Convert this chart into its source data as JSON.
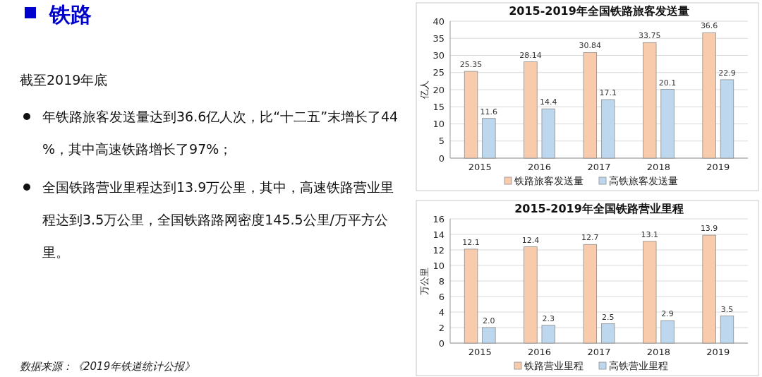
{
  "chart_data": [
    {
      "type": "other",
      "title": "铁路",
      "annotations": [
        "截至2019年底",
        "年铁路旅客发送量达到36.6亿人次，比“十二五”末增长了44%，其中高速铁路增长了97%；",
        "全国铁路营业里程达到13.9万公里，其中，高速铁路营业里程达到3.5万公里，全国铁路路网密度145.5公里/万平方公里。",
        "数据来源：《2019年铁道统计公报》"
      ]
    },
    {
      "type": "bar",
      "title": "2015-2019年全国铁路旅客发送量",
      "ylabel": "亿人",
      "categories": [
        "2015",
        "2016",
        "2017",
        "2018",
        "2019"
      ],
      "series": [
        {
          "name": "铁路旅客发送量",
          "color": "#f8cbad",
          "values": [
            25.35,
            28.14,
            30.84,
            33.75,
            36.6
          ]
        },
        {
          "name": "高铁旅客发送量",
          "color": "#bdd7ee",
          "values": [
            11.6,
            14.4,
            17.1,
            20.1,
            22.9
          ]
        }
      ],
      "ylim": [
        0,
        40
      ],
      "yticks": [
        0,
        5,
        10,
        15,
        20,
        25,
        30,
        35,
        40
      ],
      "grid": "y",
      "legend": "bottom",
      "data_labels": true
    },
    {
      "type": "bar",
      "title": "2015-2019年全国铁路营业里程",
      "ylabel": "万公里",
      "categories": [
        "2015",
        "2016",
        "2017",
        "2018",
        "2019"
      ],
      "series": [
        {
          "name": "铁路营业里程",
          "color": "#f8cbad",
          "values": [
            12.1,
            12.4,
            12.7,
            13.1,
            13.9
          ],
          "value_labels": [
            "12.1",
            "12.4",
            "12.7",
            "13.1",
            "13.9"
          ]
        },
        {
          "name": "高铁营业里程",
          "color": "#bdd7ee",
          "values": [
            2.0,
            2.3,
            2.5,
            2.9,
            3.5
          ],
          "value_labels": [
            "2.0",
            "2.3",
            "2.5",
            "2.9",
            "3.5"
          ]
        }
      ],
      "ylim": [
        0,
        16
      ],
      "yticks": [
        0,
        2,
        4,
        6,
        8,
        10,
        12,
        14,
        16
      ],
      "grid": "y",
      "legend": "bottom"
    }
  ]
}
